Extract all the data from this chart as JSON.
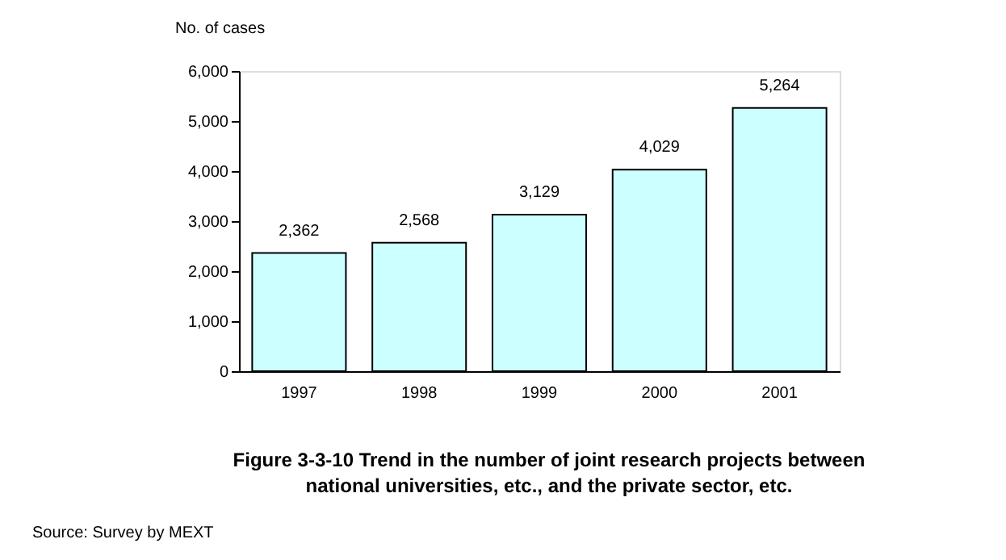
{
  "chart_data": {
    "type": "bar",
    "title": "Figure 3-3-10 Trend in the number of joint research projects between national universities, etc., and the private sector, etc.",
    "ylabel": "No. of cases",
    "categories": [
      "1997",
      "1998",
      "1999",
      "2000",
      "2001"
    ],
    "values": [
      2362,
      2568,
      3129,
      4029,
      5264
    ],
    "color": "#ccffff",
    "value_labels": [
      "2,362",
      "2,568",
      "3,129",
      "4,029",
      "5,264"
    ],
    "ylim": [
      0,
      6000
    ],
    "yticks": [
      0,
      {
        "value": 1000,
        "label": "1,000"
      },
      {
        "value": 2000,
        "label": "2,000"
      },
      {
        "value": 3000,
        "label": "3,000"
      },
      {
        "value": 4000,
        "label": "4,000"
      },
      {
        "value": 5000,
        "label": "5,000"
      },
      {
        "value": 6000,
        "label": "6,000"
      }
    ],
    "grid": false,
    "annotations": [
      "Source: Survey by MEXT"
    ]
  }
}
